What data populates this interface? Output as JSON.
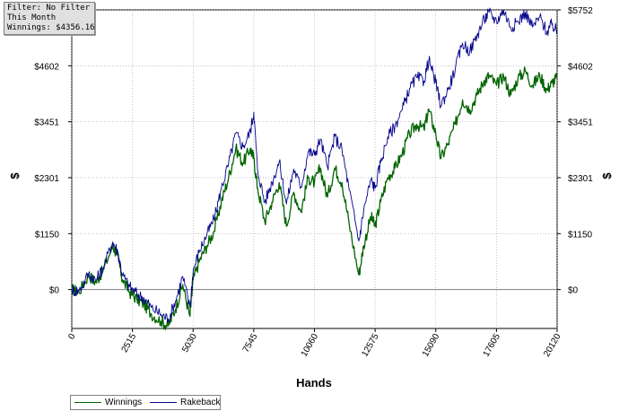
{
  "info_box": {
    "line1": "Filter: No Filter",
    "line2": "This Month",
    "line3": "Winnings: $4356.16"
  },
  "colors": {
    "winnings": "#006400",
    "rakeback": "#00008b",
    "grid": "#a0a0a0",
    "zero_line": "#808080"
  },
  "chart_data": {
    "type": "line",
    "xlabel": "Hands",
    "ylabel": "$",
    "xlim": [
      0,
      20120
    ],
    "ylim": [
      -800,
      5752
    ],
    "x_ticks": [
      "0",
      "2515",
      "5030",
      "7545",
      "10060",
      "12575",
      "15090",
      "17605",
      "20120"
    ],
    "x_tick_values": [
      0,
      2515,
      5030,
      7545,
      10060,
      12575,
      15090,
      17605,
      20120
    ],
    "y_ticks": [
      "$0",
      "$1150",
      "$2301",
      "$3451",
      "$4602",
      "$5752"
    ],
    "y_tick_values": [
      0,
      1150,
      2301,
      3451,
      4602,
      5752
    ],
    "legend_position": "bottom-left",
    "grid": true,
    "series": [
      {
        "name": "Winnings",
        "x": [
          0,
          300,
          700,
          1000,
          1300,
          1700,
          1900,
          2100,
          2400,
          2700,
          3000,
          3300,
          3700,
          4000,
          4300,
          4600,
          4900,
          5030,
          5300,
          5600,
          5900,
          6200,
          6500,
          6800,
          7100,
          7400,
          7545,
          7700,
          8000,
          8300,
          8600,
          8900,
          9200,
          9500,
          9800,
          10060,
          10300,
          10600,
          10900,
          11200,
          11500,
          11900,
          12100,
          12400,
          12575,
          12800,
          13100,
          13400,
          13700,
          14000,
          14300,
          14600,
          14800,
          15090,
          15300,
          15600,
          15900,
          16200,
          16500,
          16800,
          17100,
          17300,
          17605,
          17900,
          18200,
          18500,
          18800,
          19100,
          19400,
          19700,
          19900,
          20120
        ],
        "values": [
          0,
          -50,
          300,
          150,
          400,
          900,
          700,
          200,
          -50,
          -200,
          -300,
          -500,
          -650,
          -750,
          -400,
          100,
          -550,
          200,
          600,
          900,
          1200,
          1800,
          2300,
          2900,
          2600,
          2900,
          2700,
          2100,
          1400,
          1800,
          2200,
          1300,
          2000,
          1600,
          2300,
          2200,
          2500,
          1900,
          2500,
          2200,
          1350,
          300,
          900,
          1500,
          1300,
          1800,
          2300,
          2500,
          2800,
          3200,
          3400,
          3300,
          3700,
          3200,
          2700,
          3000,
          3400,
          3900,
          3700,
          4000,
          4300,
          4400,
          4200,
          4400,
          4000,
          4350,
          4500,
          4200,
          4400,
          4100,
          4250,
          4356
        ],
        "color": "#006400"
      },
      {
        "name": "Rakeback",
        "x": [
          0,
          300,
          700,
          1000,
          1300,
          1700,
          1900,
          2100,
          2400,
          2700,
          3000,
          3300,
          3700,
          4000,
          4300,
          4600,
          4900,
          5030,
          5300,
          5600,
          5900,
          6200,
          6500,
          6800,
          7100,
          7400,
          7545,
          7700,
          8000,
          8300,
          8600,
          8900,
          9200,
          9500,
          9800,
          10060,
          10300,
          10600,
          10900,
          11200,
          11500,
          11900,
          12100,
          12400,
          12575,
          12800,
          13100,
          13400,
          13700,
          14000,
          14300,
          14600,
          14800,
          15090,
          15300,
          15600,
          15900,
          16200,
          16500,
          16800,
          17100,
          17300,
          17605,
          17900,
          18200,
          18500,
          18800,
          19100,
          19400,
          19700,
          19900,
          20120
        ],
        "values": [
          0,
          -30,
          330,
          190,
          450,
          980,
          790,
          300,
          60,
          -90,
          -180,
          -370,
          -510,
          -600,
          -240,
          270,
          -370,
          390,
          810,
          1130,
          1450,
          2070,
          2590,
          3210,
          2930,
          3250,
          3650,
          2470,
          1790,
          2210,
          2630,
          1760,
          2480,
          2110,
          2840,
          2770,
          3090,
          2520,
          3150,
          2880,
          2050,
          1000,
          1630,
          2260,
          2080,
          2610,
          3140,
          3370,
          3700,
          4130,
          4360,
          4290,
          4720,
          4250,
          3780,
          4110,
          4540,
          5070,
          4900,
          5230,
          5560,
          5700,
          5520,
          5750,
          5390,
          5510,
          5700,
          5400,
          5600,
          5300,
          5450,
          5300
        ],
        "color": "#00008b"
      }
    ]
  }
}
